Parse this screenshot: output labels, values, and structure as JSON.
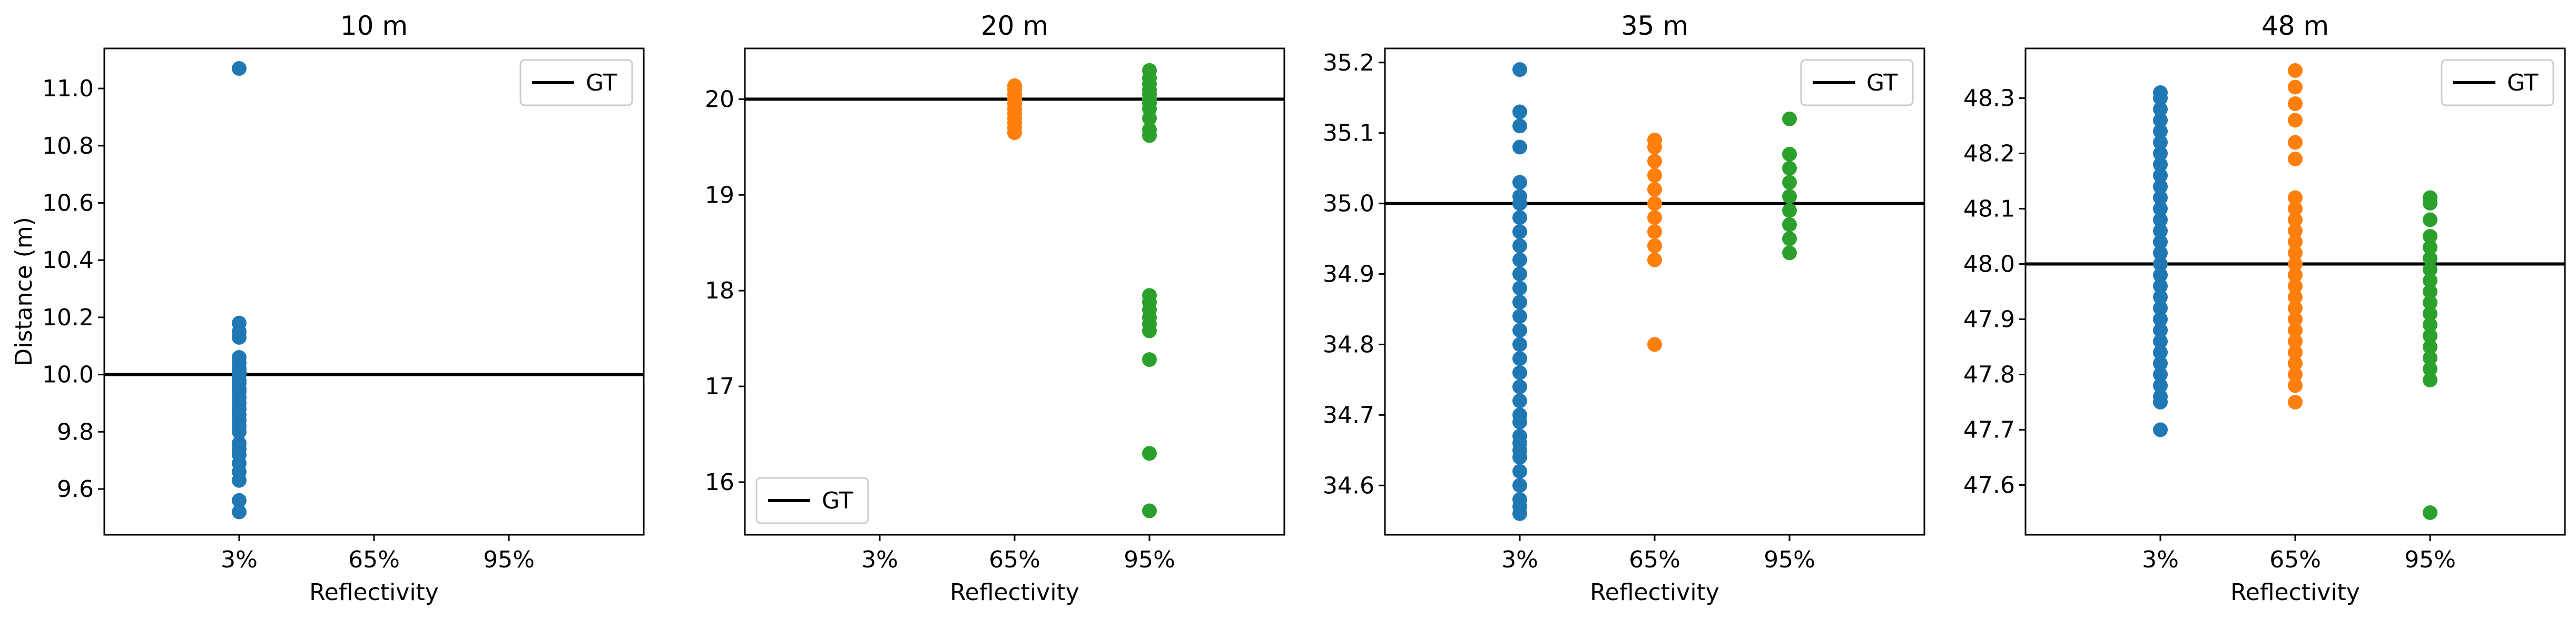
{
  "chart_data": [
    {
      "type": "scatter",
      "title": "10 m",
      "xlabel": "Reflectivity",
      "ylabel": "Distance (m)",
      "categories": [
        "3%",
        "65%",
        "95%"
      ],
      "ylim": [
        9.44,
        11.14
      ],
      "yticks": [
        9.6,
        9.8,
        10.0,
        10.2,
        10.4,
        10.6,
        10.8,
        11.0
      ],
      "ytick_labels": [
        "9.6",
        "9.8",
        "10.0",
        "10.2",
        "10.4",
        "10.6",
        "10.8",
        "11.0"
      ],
      "gt": 10.0,
      "legend": {
        "label": "GT",
        "position": "upper-right"
      },
      "series": [
        {
          "category": "3%",
          "color": "#1f77b4",
          "values": [
            9.52,
            9.56,
            9.63,
            9.66,
            9.69,
            9.72,
            9.74,
            9.76,
            9.8,
            9.82,
            9.84,
            9.86,
            9.88,
            9.9,
            9.92,
            9.94,
            9.95,
            9.97,
            9.98,
            10.0,
            10.01,
            10.02,
            10.04,
            10.06,
            10.13,
            10.15,
            10.18,
            11.07
          ]
        },
        {
          "category": "65%",
          "color": "#ff7f0e",
          "values": []
        },
        {
          "category": "95%",
          "color": "#2ca02c",
          "values": []
        }
      ]
    },
    {
      "type": "scatter",
      "title": "20 m",
      "xlabel": "Reflectivity",
      "ylabel": "",
      "categories": [
        "3%",
        "65%",
        "95%"
      ],
      "ylim": [
        15.45,
        20.53
      ],
      "yticks": [
        16,
        17,
        18,
        19,
        20
      ],
      "ytick_labels": [
        "16",
        "17",
        "18",
        "19",
        "20"
      ],
      "gt": 20.0,
      "legend": {
        "label": "GT",
        "position": "lower-left"
      },
      "series": [
        {
          "category": "3%",
          "color": "#1f77b4",
          "values": []
        },
        {
          "category": "65%",
          "color": "#ff7f0e",
          "values": [
            19.65,
            19.7,
            19.75,
            19.8,
            19.85,
            19.9,
            19.95,
            20.0,
            20.05,
            20.1,
            20.14
          ]
        },
        {
          "category": "95%",
          "color": "#2ca02c",
          "values": [
            15.7,
            16.3,
            17.28,
            17.58,
            17.65,
            17.72,
            17.8,
            17.88,
            17.95,
            19.62,
            19.68,
            19.8,
            19.9,
            19.96,
            20.0,
            20.05,
            20.1,
            20.16,
            20.22,
            20.3
          ]
        }
      ]
    },
    {
      "type": "scatter",
      "title": "35 m",
      "xlabel": "Reflectivity",
      "ylabel": "",
      "categories": [
        "3%",
        "65%",
        "95%"
      ],
      "ylim": [
        34.53,
        35.22
      ],
      "yticks": [
        34.6,
        34.7,
        34.8,
        34.9,
        35.0,
        35.1,
        35.2
      ],
      "ytick_labels": [
        "34.6",
        "34.7",
        "34.8",
        "34.9",
        "35.0",
        "35.1",
        "35.2"
      ],
      "gt": 35.0,
      "legend": {
        "label": "GT",
        "position": "upper-right"
      },
      "series": [
        {
          "category": "3%",
          "color": "#1f77b4",
          "values": [
            34.56,
            34.57,
            34.58,
            34.6,
            34.62,
            34.64,
            34.65,
            34.66,
            34.67,
            34.69,
            34.7,
            34.72,
            34.74,
            34.76,
            34.78,
            34.8,
            34.82,
            34.84,
            34.86,
            34.88,
            34.9,
            34.92,
            34.94,
            34.96,
            34.98,
            35.0,
            35.01,
            35.03,
            35.08,
            35.11,
            35.13,
            35.19
          ]
        },
        {
          "category": "65%",
          "color": "#ff7f0e",
          "values": [
            34.8,
            34.92,
            34.94,
            34.96,
            34.98,
            35.0,
            35.02,
            35.04,
            35.06,
            35.08,
            35.09
          ]
        },
        {
          "category": "95%",
          "color": "#2ca02c",
          "values": [
            34.93,
            34.95,
            34.97,
            34.99,
            35.01,
            35.03,
            35.05,
            35.07,
            35.12
          ]
        }
      ]
    },
    {
      "type": "scatter",
      "title": "48 m",
      "xlabel": "Reflectivity",
      "ylabel": "",
      "categories": [
        "3%",
        "65%",
        "95%"
      ],
      "ylim": [
        47.51,
        48.39
      ],
      "yticks": [
        47.6,
        47.7,
        47.8,
        47.9,
        48.0,
        48.1,
        48.2,
        48.3
      ],
      "ytick_labels": [
        "47.6",
        "47.7",
        "47.8",
        "47.9",
        "48.0",
        "48.1",
        "48.2",
        "48.3"
      ],
      "gt": 48.0,
      "legend": {
        "label": "GT",
        "position": "upper-right"
      },
      "series": [
        {
          "category": "3%",
          "color": "#1f77b4",
          "values": [
            47.7,
            47.75,
            47.76,
            47.78,
            47.8,
            47.82,
            47.84,
            47.86,
            47.88,
            47.9,
            47.92,
            47.94,
            47.96,
            47.98,
            48.0,
            48.02,
            48.04,
            48.06,
            48.08,
            48.1,
            48.12,
            48.14,
            48.16,
            48.18,
            48.2,
            48.22,
            48.24,
            48.26,
            48.28,
            48.3,
            48.31
          ]
        },
        {
          "category": "65%",
          "color": "#ff7f0e",
          "values": [
            47.75,
            47.78,
            47.8,
            47.82,
            47.84,
            47.86,
            47.88,
            47.9,
            47.92,
            47.94,
            47.96,
            47.98,
            48.0,
            48.02,
            48.04,
            48.06,
            48.08,
            48.1,
            48.12,
            48.19,
            48.22,
            48.26,
            48.29,
            48.32,
            48.35
          ]
        },
        {
          "category": "95%",
          "color": "#2ca02c",
          "values": [
            47.55,
            47.79,
            47.81,
            47.83,
            47.85,
            47.87,
            47.89,
            47.91,
            47.93,
            47.95,
            47.97,
            47.99,
            48.01,
            48.03,
            48.05,
            48.08,
            48.11,
            48.12
          ]
        }
      ]
    }
  ]
}
